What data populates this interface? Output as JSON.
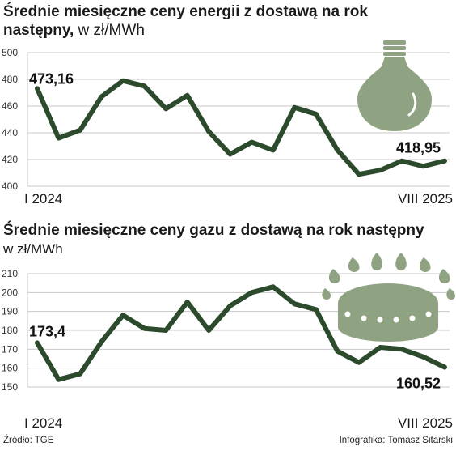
{
  "page": {
    "title1": "Średnie miesięczne ceny energii z dostawą na rok",
    "title1_line2": "następny,",
    "title1_unit": " w zł/MWh",
    "title2": "Średnie miesięczne ceny gazu z dostawą na rok następny",
    "title2_unit": "w zł/MWh",
    "source": "Źródło: TGE",
    "credit": "Infografika: Tomasz Sitarski"
  },
  "colors": {
    "line": "#2c4a2c",
    "icon": "#8fa383",
    "grid": "#c8c8c8"
  },
  "icons": [
    "light-bulb-icon",
    "gas-burner-icon"
  ],
  "chart_data": [
    {
      "type": "line",
      "title": "Średnie miesięczne ceny energii z dostawą na rok następny, w zł/MWh",
      "xlabel": "",
      "ylabel": "",
      "x_start_label": "I 2024",
      "x_end_label": "VIII 2025",
      "ylim": [
        400,
        500
      ],
      "yticks": [
        400,
        420,
        440,
        460,
        480,
        500
      ],
      "grid": true,
      "values": [
        473.16,
        436,
        442,
        467,
        479,
        475,
        458,
        468,
        441,
        424,
        433,
        427,
        459,
        454,
        427,
        409,
        412,
        419,
        415,
        418.95
      ],
      "labels": {
        "first": "473,16",
        "last": "418,95"
      }
    },
    {
      "type": "line",
      "title": "Średnie miesięczne ceny gazu z dostawą na rok następny w zł/MWh",
      "xlabel": "",
      "ylabel": "",
      "x_start_label": "I 2024",
      "x_end_label": "VIII 2025",
      "ylim": [
        150,
        210
      ],
      "yticks": [
        150,
        160,
        170,
        180,
        190,
        200,
        210
      ],
      "grid": true,
      "values": [
        173.4,
        154,
        157,
        174,
        188,
        181,
        180,
        195,
        180,
        193,
        200,
        203,
        194,
        191,
        169,
        163,
        171,
        170,
        166,
        160.52
      ],
      "labels": {
        "first": "173,4",
        "last": "160,52"
      }
    }
  ]
}
